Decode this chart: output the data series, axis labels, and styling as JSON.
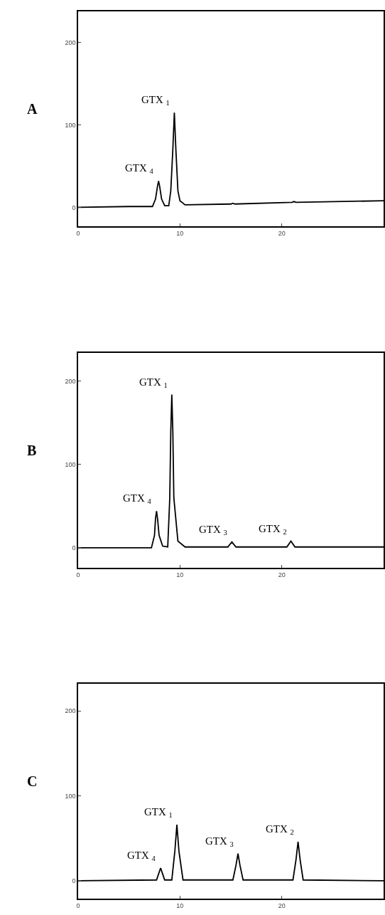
{
  "chart_data": [
    {
      "type": "line",
      "title": "A",
      "x": [
        0,
        5,
        7.3,
        7.6,
        7.8,
        7.9,
        8.0,
        8.2,
        8.5,
        8.9,
        9.1,
        9.3,
        9.45,
        9.6,
        9.8,
        10.0,
        10.5,
        15,
        15.2,
        15.4,
        21,
        21.2,
        21.4,
        30
      ],
      "series": [
        {
          "color": "#000000",
          "values": [
            0,
            1,
            1,
            10,
            26,
            32,
            26,
            10,
            2,
            2,
            20,
            70,
            115,
            70,
            20,
            8,
            3,
            4,
            5,
            4,
            6,
            7,
            6,
            8
          ]
        }
      ],
      "xlim": [
        0,
        30
      ],
      "ylim": [
        -23,
        238
      ],
      "xticks": [
        0,
        10,
        20
      ],
      "yticks": [
        0,
        100,
        200
      ],
      "annotations": [
        {
          "text": "GTX $_{4}$",
          "x": 7.9,
          "y": 32
        },
        {
          "text": "GTX $_{1}$",
          "x": 9.45,
          "y": 115
        }
      ]
    },
    {
      "type": "line",
      "title": "B",
      "x": [
        0,
        7.2,
        7.5,
        7.6,
        7.7,
        7.8,
        7.95,
        8.3,
        8.8,
        9.0,
        9.1,
        9.2,
        9.3,
        9.4,
        9.8,
        10.5,
        14.7,
        15.1,
        15.5,
        20.5,
        20.9,
        21.3,
        30
      ],
      "series": [
        {
          "color": "#000000",
          "values": [
            0,
            0,
            15,
            35,
            44,
            35,
            15,
            2,
            1,
            60,
            140,
            184,
            140,
            60,
            8,
            1,
            1,
            7,
            1,
            1,
            8,
            1,
            1
          ]
        }
      ],
      "xlim": [
        0,
        30
      ],
      "ylim": [
        -24,
        234
      ],
      "xticks": [
        0,
        10,
        20
      ],
      "yticks": [
        0,
        100,
        200
      ],
      "annotations": [
        {
          "text": "GTX $_{4}$",
          "x": 7.7,
          "y": 44
        },
        {
          "text": "GTX $_{1}$",
          "x": 9.2,
          "y": 184
        },
        {
          "text": "GTX $_{3}$",
          "x": 15.1,
          "y": 7
        },
        {
          "text": "GTX $_{2}$",
          "x": 20.9,
          "y": 8
        }
      ]
    },
    {
      "type": "line",
      "title": "C",
      "x": [
        0,
        7.7,
        7.9,
        8.1,
        8.3,
        8.5,
        9.2,
        9.5,
        9.7,
        9.9,
        10.3,
        15.2,
        15.5,
        15.7,
        15.9,
        16.2,
        21.1,
        21.4,
        21.6,
        21.8,
        22.1,
        30
      ],
      "series": [
        {
          "color": "#000000",
          "values": [
            0,
            1,
            8,
            15,
            8,
            1,
            1,
            35,
            66,
            35,
            1,
            1,
            18,
            32,
            18,
            1,
            1,
            25,
            46,
            25,
            1,
            0
          ]
        }
      ],
      "xlim": [
        0,
        30
      ],
      "ylim": [
        -21,
        232
      ],
      "xticks": [
        0,
        10,
        20
      ],
      "yticks": [
        0,
        100,
        200
      ],
      "annotations": [
        {
          "text": "GTX $_{4}$",
          "x": 8.1,
          "y": 15
        },
        {
          "text": "GTX $_{1}$",
          "x": 9.7,
          "y": 66
        },
        {
          "text": "GTX $_{3}$",
          "x": 15.7,
          "y": 32
        },
        {
          "text": "GTX $_{2}$",
          "x": 21.6,
          "y": 46
        }
      ]
    }
  ]
}
